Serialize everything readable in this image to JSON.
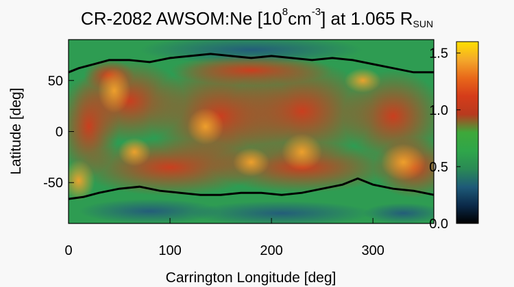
{
  "chart_data": {
    "type": "heatmap",
    "title": {
      "prefix": "CR-2082 AWSOM:Ne [10",
      "exp1": "8",
      "mid": "cm",
      "exp2": "-3",
      "after": "] at 1.065 R",
      "sub": "SUN"
    },
    "xlabel": "Carrington Longitude [deg]",
    "ylabel": "Latitude [deg]",
    "xlim": [
      0,
      360
    ],
    "ylim": [
      -90,
      90
    ],
    "x_ticks": [
      "0",
      "100",
      "200",
      "300"
    ],
    "y_ticks": [
      "50",
      "0",
      "-50"
    ],
    "colorbar": {
      "range": [
        0.0,
        1.6
      ],
      "tick_labels": [
        "1.5",
        "1.0",
        "0.5",
        "0.0"
      ],
      "colormap": [
        "#000000",
        "#0b2a4a",
        "#1e5a78",
        "#2a8a55",
        "#2fa64a",
        "#3ea83a",
        "#b83a1e",
        "#d53c1a",
        "#e8681a",
        "#f4a82a",
        "#ffe000"
      ]
    },
    "colors": {
      "background_low": "#2e9c52",
      "polar_blue": "#2d6e86",
      "active_red": "#cf3d1f",
      "hot_orange": "#ee8a25",
      "boundary": "#000000"
    },
    "regions": {
      "north_boundary": [
        [
          0,
          58
        ],
        [
          10,
          62
        ],
        [
          25,
          66
        ],
        [
          40,
          70
        ],
        [
          60,
          70
        ],
        [
          80,
          68
        ],
        [
          100,
          72
        ],
        [
          120,
          74
        ],
        [
          140,
          76
        ],
        [
          160,
          74
        ],
        [
          180,
          72
        ],
        [
          200,
          74
        ],
        [
          220,
          72
        ],
        [
          240,
          70
        ],
        [
          260,
          72
        ],
        [
          280,
          70
        ],
        [
          300,
          66
        ],
        [
          320,
          62
        ],
        [
          340,
          58
        ],
        [
          360,
          58
        ]
      ],
      "south_boundary": [
        [
          0,
          -66
        ],
        [
          15,
          -64
        ],
        [
          30,
          -60
        ],
        [
          50,
          -56
        ],
        [
          70,
          -54
        ],
        [
          90,
          -58
        ],
        [
          110,
          -60
        ],
        [
          130,
          -62
        ],
        [
          150,
          -62
        ],
        [
          170,
          -60
        ],
        [
          190,
          -60
        ],
        [
          210,
          -62
        ],
        [
          230,
          -60
        ],
        [
          250,
          -56
        ],
        [
          270,
          -52
        ],
        [
          285,
          -46
        ],
        [
          300,
          -52
        ],
        [
          320,
          -56
        ],
        [
          340,
          -58
        ],
        [
          360,
          -62
        ]
      ]
    }
  }
}
